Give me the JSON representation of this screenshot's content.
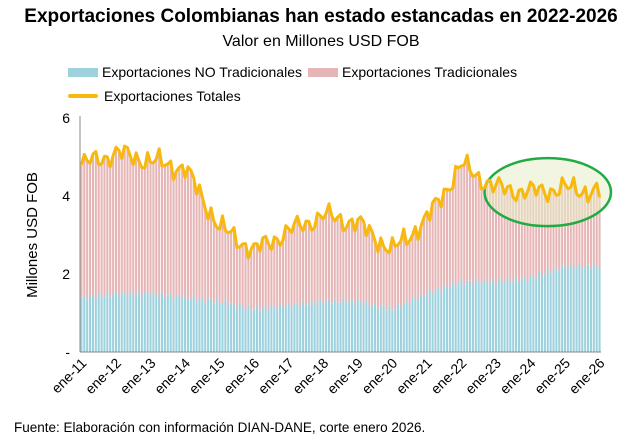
{
  "title": "Exportaciones Colombianas han estado estancadas en 2022-2026",
  "subtitle": "Valor en Millones USD FOB",
  "source": "Fuente: Elaboración con información DIAN-DANE, corte enero 2026.",
  "colors": {
    "no_tradicionales": "#9dd1dd",
    "tradicionales": "#e6b5b6",
    "totales": "#f7b90f",
    "highlight_stroke": "#22aa44",
    "highlight_fill": "#e8edc8"
  },
  "legend": {
    "no_tradicionales": "Exportaciones NO Tradicionales",
    "tradicionales": "Exportaciones Tradicionales",
    "totales": "Exportaciones Totales"
  },
  "chart_data": {
    "type": "bar",
    "stacked": true,
    "title": "Exportaciones Colombianas han estado estancadas en 2022-2026",
    "subtitle": "Valor en Millones USD FOB",
    "ylabel": "Millones USD FOB",
    "ylim": [
      0,
      6
    ],
    "yticks": [
      "-",
      "2",
      "4",
      "6"
    ],
    "grid": false,
    "legend_position": "top",
    "x_tick_labels": [
      "ene-11",
      "ene-12",
      "ene-13",
      "ene-14",
      "ene-15",
      "ene-16",
      "ene-17",
      "ene-18",
      "ene-19",
      "ene-20",
      "ene-21",
      "ene-22",
      "ene-23",
      "ene-24",
      "ene-25",
      "ene-26"
    ],
    "annual_totals": [
      {
        "year": 2011,
        "total": 4.8
      },
      {
        "year": 2012,
        "total": 5.1
      },
      {
        "year": 2013,
        "total": 4.9
      },
      {
        "year": 2014,
        "total": 4.7
      },
      {
        "year": 2015,
        "total": 3.2
      },
      {
        "year": 2016,
        "total": 2.6
      },
      {
        "year": 2017,
        "total": 3.1
      },
      {
        "year": 2018,
        "total": 3.5
      },
      {
        "year": 2019,
        "total": 3.3
      },
      {
        "year": 2020,
        "total": 2.6
      },
      {
        "year": 2021,
        "total": 3.4
      },
      {
        "year": 2022,
        "total": 4.8
      },
      {
        "year": 2023,
        "total": 4.2
      },
      {
        "year": 2024,
        "total": 4.1
      },
      {
        "year": 2025,
        "total": 4.2
      },
      {
        "year": 2026,
        "total": 4.1
      }
    ],
    "annual_no_tradicionales": [
      {
        "year": 2011,
        "value": 1.4
      },
      {
        "year": 2012,
        "value": 1.5
      },
      {
        "year": 2013,
        "value": 1.5
      },
      {
        "year": 2014,
        "value": 1.4
      },
      {
        "year": 2015,
        "value": 1.3
      },
      {
        "year": 2016,
        "value": 1.1
      },
      {
        "year": 2017,
        "value": 1.2
      },
      {
        "year": 2018,
        "value": 1.3
      },
      {
        "year": 2019,
        "value": 1.3
      },
      {
        "year": 2020,
        "value": 1.1
      },
      {
        "year": 2021,
        "value": 1.5
      },
      {
        "year": 2022,
        "value": 1.8
      },
      {
        "year": 2023,
        "value": 1.8
      },
      {
        "year": 2024,
        "value": 1.9
      },
      {
        "year": 2025,
        "value": 2.2
      },
      {
        "year": 2026,
        "value": 2.2
      }
    ],
    "series": [
      {
        "name": "Exportaciones NO Tradicionales",
        "type": "bar"
      },
      {
        "name": "Exportaciones Tradicionales",
        "type": "bar"
      },
      {
        "name": "Exportaciones Totales",
        "type": "line"
      }
    ],
    "annotations": [
      {
        "type": "ellipse",
        "from": "ene-23",
        "to": "ene-26",
        "y_center": 4.1
      }
    ]
  }
}
